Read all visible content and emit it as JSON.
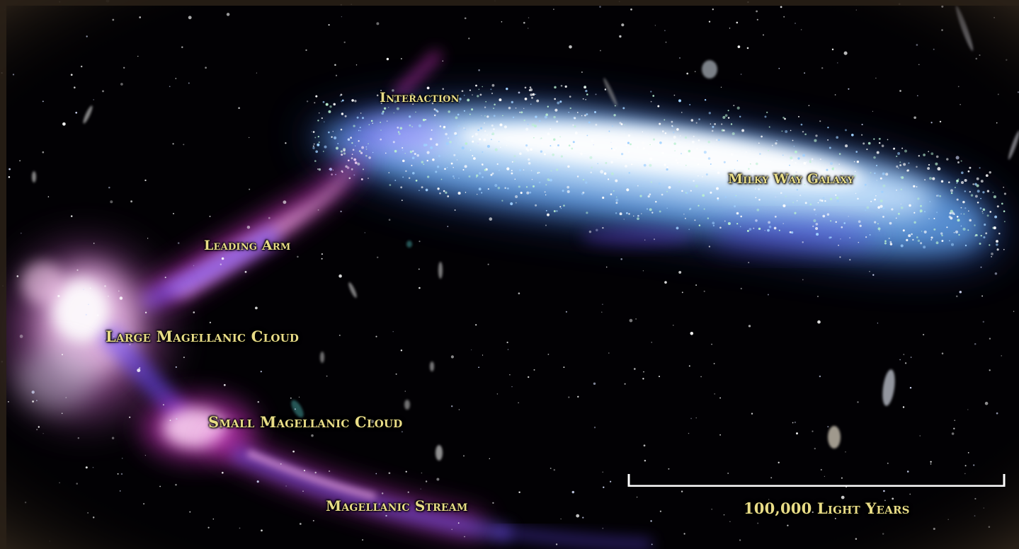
{
  "labels": {
    "interaction": "Interaction",
    "milky_way": "Milky Way Galaxy",
    "leading_arm": "Leading Arm",
    "lmc": "Large Magellanic Cloud",
    "smc": "Small Magellanic Cloud",
    "stream": "Magellanic Stream"
  },
  "scale_bar": {
    "label": "100,000 Light Years"
  },
  "colors": {
    "background": "#020104",
    "label_text": "#e8dc86",
    "galaxy_core": "#ffffff",
    "galaxy_blue": "#6fb6ff",
    "gas_magenta": "#e23bd6",
    "gas_violet": "#7a5cff"
  }
}
